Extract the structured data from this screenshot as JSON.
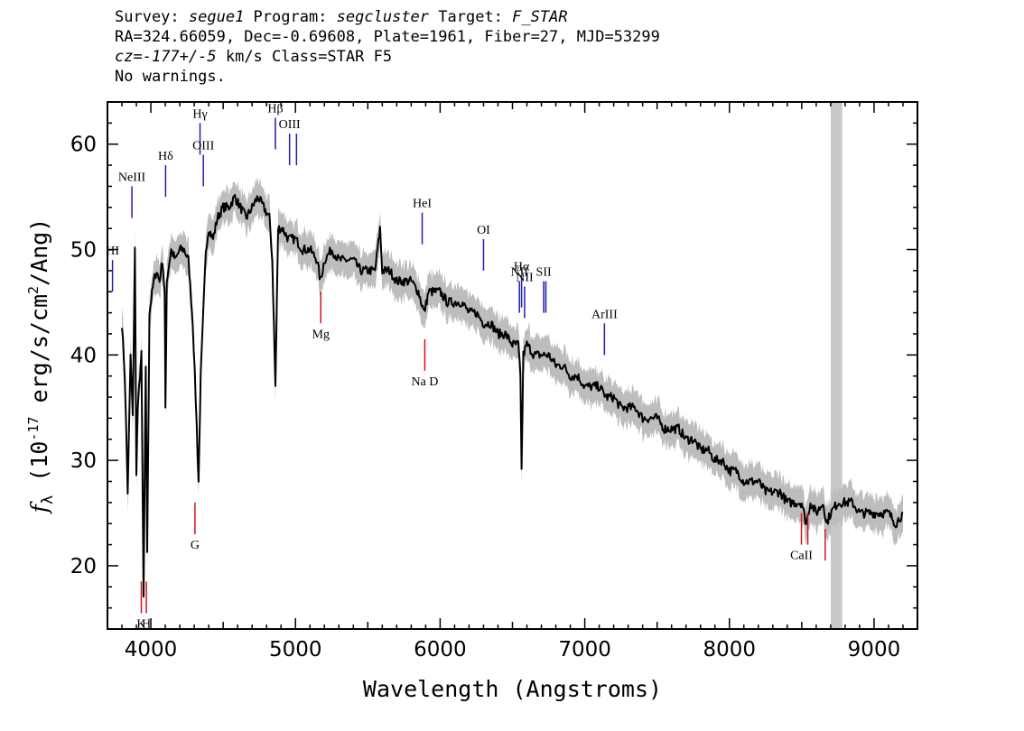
{
  "header": {
    "line1": {
      "survey_label": "Survey: ",
      "survey": "segue1",
      "program_label": " Program: ",
      "program": "segcluster",
      "target_label": " Target: ",
      "target": "F_STAR"
    },
    "line2": "RA=324.66059, Dec=-0.69608, Plate=1961, Fiber=27, MJD=53299",
    "line3": {
      "cz_label": "cz",
      "cz_value": "=-177+/-5",
      "cz_unit": " km/s Class=STAR F5"
    },
    "line4": "No warnings."
  },
  "chart_data": {
    "type": "line",
    "xlabel": "Wavelength (Angstroms)",
    "ylabel": "f_λ (10^-17 erg/s/cm^2/Ang)",
    "xlim": [
      3700,
      9300
    ],
    "ylim": [
      14,
      64
    ],
    "x_ticks": [
      4000,
      5000,
      6000,
      7000,
      8000,
      9000
    ],
    "y_ticks": [
      20,
      30,
      40,
      50,
      60
    ],
    "grid": false,
    "series": [
      {
        "color": "#000000",
        "points": [
          [
            3800,
            43
          ],
          [
            3820,
            38
          ],
          [
            3840,
            27
          ],
          [
            3860,
            40
          ],
          [
            3875,
            34
          ],
          [
            3890,
            50
          ],
          [
            3900,
            29
          ],
          [
            3910,
            35
          ],
          [
            3925,
            38
          ],
          [
            3935,
            40
          ],
          [
            3950,
            17
          ],
          [
            3965,
            39
          ],
          [
            3975,
            21
          ],
          [
            3990,
            44
          ],
          [
            4020,
            47
          ],
          [
            4040,
            48
          ],
          [
            4060,
            47
          ],
          [
            4080,
            49
          ],
          [
            4095,
            46
          ],
          [
            4101,
            35
          ],
          [
            4110,
            47
          ],
          [
            4140,
            50
          ],
          [
            4170,
            49
          ],
          [
            4200,
            50
          ],
          [
            4230,
            50
          ],
          [
            4260,
            49
          ],
          [
            4290,
            43
          ],
          [
            4310,
            36
          ],
          [
            4330,
            28
          ],
          [
            4345,
            38
          ],
          [
            4360,
            43
          ],
          [
            4380,
            50
          ],
          [
            4400,
            52
          ],
          [
            4430,
            51
          ],
          [
            4460,
            53
          ],
          [
            4500,
            54
          ],
          [
            4540,
            54
          ],
          [
            4580,
            55
          ],
          [
            4620,
            54
          ],
          [
            4660,
            53
          ],
          [
            4700,
            54
          ],
          [
            4740,
            55
          ],
          [
            4780,
            54
          ],
          [
            4820,
            53
          ],
          [
            4840,
            49
          ],
          [
            4861,
            37
          ],
          [
            4880,
            52
          ],
          [
            4910,
            52
          ],
          [
            4950,
            51
          ],
          [
            5000,
            51
          ],
          [
            5050,
            50
          ],
          [
            5100,
            50
          ],
          [
            5150,
            49
          ],
          [
            5172,
            47
          ],
          [
            5200,
            49
          ],
          [
            5250,
            50
          ],
          [
            5300,
            49
          ],
          [
            5350,
            49
          ],
          [
            5400,
            49
          ],
          [
            5450,
            48
          ],
          [
            5500,
            48
          ],
          [
            5550,
            48
          ],
          [
            5585,
            52
          ],
          [
            5600,
            48
          ],
          [
            5650,
            48
          ],
          [
            5700,
            47
          ],
          [
            5750,
            47
          ],
          [
            5800,
            47
          ],
          [
            5850,
            46
          ],
          [
            5890,
            44
          ],
          [
            5920,
            46
          ],
          [
            5950,
            46
          ],
          [
            6000,
            46
          ],
          [
            6050,
            45
          ],
          [
            6100,
            45
          ],
          [
            6150,
            45
          ],
          [
            6200,
            44
          ],
          [
            6250,
            44
          ],
          [
            6300,
            43
          ],
          [
            6350,
            43
          ],
          [
            6400,
            42
          ],
          [
            6450,
            42
          ],
          [
            6500,
            41
          ],
          [
            6540,
            41
          ],
          [
            6555,
            38
          ],
          [
            6563,
            29
          ],
          [
            6575,
            40
          ],
          [
            6600,
            41
          ],
          [
            6650,
            40
          ],
          [
            6700,
            40
          ],
          [
            6750,
            40
          ],
          [
            6800,
            39
          ],
          [
            6850,
            39
          ],
          [
            6900,
            38
          ],
          [
            6950,
            38
          ],
          [
            7000,
            37
          ],
          [
            7050,
            37
          ],
          [
            7100,
            37
          ],
          [
            7150,
            36
          ],
          [
            7200,
            36
          ],
          [
            7250,
            35
          ],
          [
            7300,
            35
          ],
          [
            7350,
            35
          ],
          [
            7400,
            34
          ],
          [
            7450,
            34
          ],
          [
            7500,
            34
          ],
          [
            7550,
            33
          ],
          [
            7600,
            33
          ],
          [
            7650,
            33
          ],
          [
            7700,
            32
          ],
          [
            7750,
            32
          ],
          [
            7800,
            31
          ],
          [
            7850,
            31
          ],
          [
            7900,
            30
          ],
          [
            7950,
            30
          ],
          [
            8000,
            29
          ],
          [
            8050,
            29
          ],
          [
            8100,
            28
          ],
          [
            8150,
            28
          ],
          [
            8200,
            28
          ],
          [
            8250,
            27
          ],
          [
            8300,
            27
          ],
          [
            8350,
            27
          ],
          [
            8400,
            26
          ],
          [
            8450,
            26
          ],
          [
            8500,
            26
          ],
          [
            8530,
            24
          ],
          [
            8560,
            26
          ],
          [
            8600,
            25
          ],
          [
            8650,
            26
          ],
          [
            8670,
            24
          ],
          [
            8700,
            25
          ],
          [
            8750,
            26
          ],
          [
            8800,
            26
          ],
          [
            8850,
            26
          ],
          [
            8900,
            25
          ],
          [
            8950,
            25
          ],
          [
            9000,
            25
          ],
          [
            9050,
            25
          ],
          [
            9100,
            25
          ],
          [
            9150,
            24
          ],
          [
            9200,
            25
          ]
        ]
      }
    ],
    "masked_region": {
      "x": [
        8700,
        8780
      ],
      "color": "#c8c8c8"
    },
    "line_markers": [
      {
        "label": "H",
        "sub": "I",
        "wl": 3735,
        "kind": "emission",
        "y0": 46,
        "y1": 49
      },
      {
        "label": "NeIII",
        "wl": 3869,
        "kind": "emission",
        "y0": 53,
        "y1": 56
      },
      {
        "label": "Hδ",
        "wl": 4102,
        "kind": "emission",
        "y0": 55,
        "y1": 58
      },
      {
        "label": "Hγ",
        "wl": 4340,
        "kind": "emission",
        "y0": 59,
        "y1": 62
      },
      {
        "label": "OIII",
        "wl": 4363,
        "kind": "emission",
        "y0": 56,
        "y1": 59
      },
      {
        "label": "Hβ",
        "wl": 4861,
        "kind": "emission",
        "y0": 59.5,
        "y1": 62.5
      },
      {
        "label": "OIII",
        "wl": 4959,
        "kind": "emission",
        "y0": 58,
        "y1": 61
      },
      {
        "label": "",
        "wl": 5007,
        "kind": "emission",
        "y0": 58,
        "y1": 61
      },
      {
        "label": "HeI",
        "wl": 5876,
        "kind": "emission",
        "y0": 50.5,
        "y1": 53.5
      },
      {
        "label": "OI",
        "wl": 6300,
        "kind": "emission",
        "y0": 48,
        "y1": 51
      },
      {
        "label": "NII",
        "wl": 6548,
        "kind": "emission",
        "y0": 44,
        "y1": 47
      },
      {
        "label": "Hα",
        "wl": 6563,
        "kind": "emission",
        "y0": 44.5,
        "y1": 47.5
      },
      {
        "label": "NII",
        "wl": 6584,
        "kind": "emission",
        "y0": 43.5,
        "y1": 46.5
      },
      {
        "label": "SII",
        "wl": 6716,
        "kind": "emission",
        "y0": 44,
        "y1": 47
      },
      {
        "label": "",
        "wl": 6731,
        "kind": "emission",
        "y0": 44,
        "y1": 47
      },
      {
        "label": "ArIII",
        "wl": 7136,
        "kind": "emission",
        "y0": 40,
        "y1": 43
      },
      {
        "label": "K",
        "wl": 3934,
        "kind": "absorption",
        "y0": 15.5,
        "y1": 18.5
      },
      {
        "label": "H",
        "wl": 3969,
        "kind": "absorption",
        "y0": 15.5,
        "y1": 18.5
      },
      {
        "label": "G",
        "wl": 4305,
        "kind": "absorption",
        "y0": 23,
        "y1": 26
      },
      {
        "label": "Mg",
        "wl": 5175,
        "kind": "absorption",
        "y0": 43,
        "y1": 46
      },
      {
        "label": "Na D",
        "wl": 5894,
        "kind": "absorption",
        "y0": 38.5,
        "y1": 41.5
      },
      {
        "label": "CaII",
        "wl": 8498,
        "kind": "absorption",
        "y0": 22,
        "y1": 25
      },
      {
        "label": "",
        "wl": 8542,
        "kind": "absorption",
        "y0": 22,
        "y1": 25
      },
      {
        "label": "",
        "wl": 8662,
        "kind": "absorption",
        "y0": 20.5,
        "y1": 23.5
      }
    ],
    "colors": {
      "emission": "#1f1fb0",
      "absorption": "#d41414",
      "error": "#bdbdbd",
      "flux": "#000000"
    }
  }
}
